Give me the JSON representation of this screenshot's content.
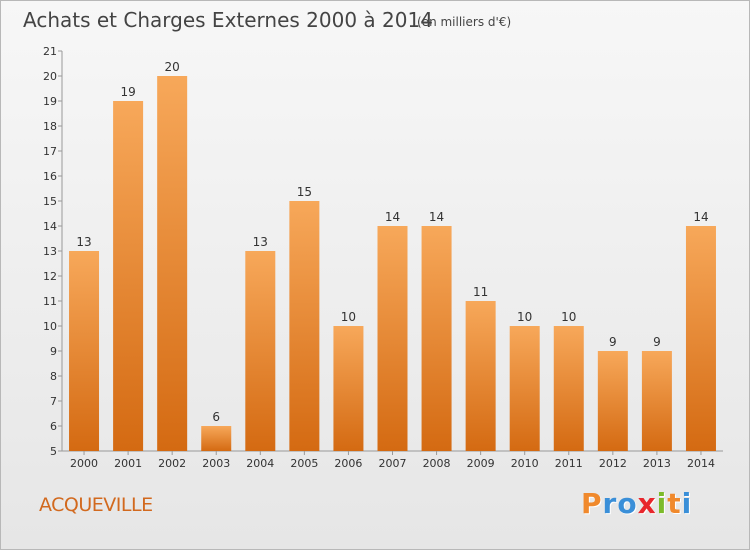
{
  "chart_data": {
    "type": "bar",
    "title": "Achats et Charges Externes 2000 à 2014",
    "subtitle": "(en milliers d'€)",
    "categories": [
      "2000",
      "2001",
      "2002",
      "2003",
      "2004",
      "2005",
      "2006",
      "2007",
      "2008",
      "2009",
      "2010",
      "2011",
      "2012",
      "2013",
      "2014"
    ],
    "values": [
      13,
      19,
      20,
      6,
      13,
      15,
      10,
      14,
      14,
      11,
      10,
      10,
      9,
      9,
      14
    ],
    "ylim": [
      5,
      21
    ],
    "yticks": [
      5,
      6,
      7,
      8,
      9,
      10,
      11,
      12,
      13,
      14,
      15,
      16,
      17,
      18,
      19,
      20,
      21
    ],
    "grid": false,
    "bar_color": "#f0892c"
  },
  "place_name": "ACQUEVILLE",
  "logo": {
    "letters": [
      "P",
      "r",
      "o",
      "x",
      "i",
      "t",
      "i"
    ],
    "colors": [
      "#f0892c",
      "#3a8fd8",
      "#3a8fd8",
      "#e8262c",
      "#7cbb2a",
      "#f0892c",
      "#3a8fd8"
    ]
  }
}
